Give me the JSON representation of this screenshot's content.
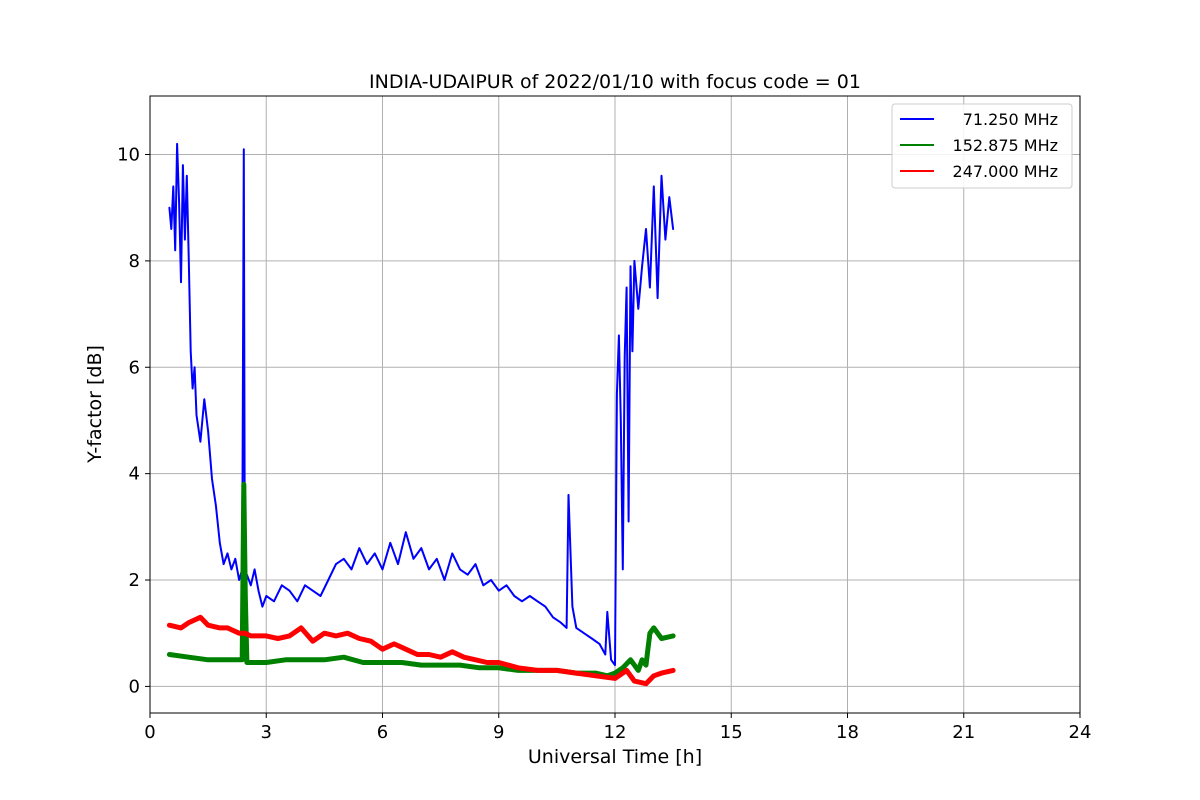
{
  "chart_data": {
    "type": "line",
    "title": "INDIA-UDAIPUR of 2022/01/10 with focus code = 01",
    "xlabel": "Universal Time [h]",
    "ylabel": "Y-factor [dB]",
    "xlim": [
      0,
      24
    ],
    "ylim": [
      -0.5,
      11.1
    ],
    "xticks": [
      0,
      3,
      6,
      9,
      12,
      15,
      18,
      21,
      24
    ],
    "yticks": [
      0,
      2,
      4,
      6,
      8,
      10
    ],
    "grid": true,
    "legend_position": "top-right",
    "series": [
      {
        "name": "71.250 MHz",
        "color": "#0000ff",
        "x": [
          0.5,
          0.55,
          0.6,
          0.65,
          0.7,
          0.75,
          0.8,
          0.85,
          0.9,
          0.95,
          1.0,
          1.05,
          1.1,
          1.15,
          1.2,
          1.3,
          1.4,
          1.5,
          1.6,
          1.7,
          1.8,
          1.9,
          2.0,
          2.1,
          2.2,
          2.3,
          2.38,
          2.42,
          2.45,
          2.5,
          2.6,
          2.7,
          2.8,
          2.9,
          3.0,
          3.2,
          3.4,
          3.6,
          3.8,
          4.0,
          4.2,
          4.4,
          4.6,
          4.8,
          5.0,
          5.2,
          5.4,
          5.6,
          5.8,
          6.0,
          6.2,
          6.4,
          6.6,
          6.8,
          7.0,
          7.2,
          7.4,
          7.6,
          7.8,
          8.0,
          8.2,
          8.4,
          8.6,
          8.8,
          9.0,
          9.2,
          9.4,
          9.6,
          9.8,
          10.0,
          10.2,
          10.4,
          10.6,
          10.75,
          10.8,
          10.9,
          11.0,
          11.2,
          11.4,
          11.6,
          11.75,
          11.8,
          11.9,
          12.0,
          12.05,
          12.1,
          12.15,
          12.2,
          12.25,
          12.3,
          12.35,
          12.4,
          12.45,
          12.5,
          12.6,
          12.7,
          12.8,
          12.9,
          13.0,
          13.1,
          13.2,
          13.3,
          13.4,
          13.5
        ],
        "y": [
          9.0,
          8.6,
          9.4,
          8.2,
          10.2,
          9.1,
          7.6,
          9.8,
          8.4,
          9.6,
          8.0,
          6.3,
          5.6,
          6.0,
          5.1,
          4.6,
          5.4,
          4.8,
          3.9,
          3.4,
          2.7,
          2.3,
          2.5,
          2.2,
          2.4,
          2.0,
          2.2,
          10.1,
          1.6,
          2.1,
          1.9,
          2.2,
          1.8,
          1.5,
          1.7,
          1.6,
          1.9,
          1.8,
          1.6,
          1.9,
          1.8,
          1.7,
          2.0,
          2.3,
          2.4,
          2.2,
          2.6,
          2.3,
          2.5,
          2.2,
          2.7,
          2.3,
          2.9,
          2.4,
          2.6,
          2.2,
          2.4,
          2.0,
          2.5,
          2.2,
          2.1,
          2.3,
          1.9,
          2.0,
          1.8,
          1.9,
          1.7,
          1.6,
          1.7,
          1.6,
          1.5,
          1.3,
          1.2,
          1.1,
          3.6,
          1.5,
          1.1,
          1.0,
          0.9,
          0.8,
          0.6,
          1.4,
          0.5,
          0.4,
          5.5,
          6.6,
          5.0,
          2.2,
          6.2,
          7.5,
          3.1,
          7.9,
          6.3,
          8.0,
          7.1,
          7.9,
          8.6,
          7.5,
          9.4,
          7.3,
          9.6,
          8.4,
          9.2,
          8.6
        ]
      },
      {
        "name": "152.875 MHz",
        "color": "#008000",
        "x": [
          0.5,
          1.0,
          1.5,
          2.0,
          2.38,
          2.42,
          2.46,
          2.5,
          3.0,
          3.5,
          4.0,
          4.5,
          5.0,
          5.5,
          6.0,
          6.5,
          7.0,
          7.5,
          8.0,
          8.5,
          9.0,
          9.5,
          10.0,
          10.5,
          11.0,
          11.5,
          11.8,
          12.0,
          12.2,
          12.4,
          12.6,
          12.7,
          12.8,
          12.85,
          12.9,
          13.0,
          13.2,
          13.5
        ],
        "y": [
          0.6,
          0.55,
          0.5,
          0.5,
          0.5,
          3.8,
          1.7,
          0.45,
          0.45,
          0.5,
          0.5,
          0.5,
          0.55,
          0.45,
          0.45,
          0.45,
          0.4,
          0.4,
          0.4,
          0.35,
          0.35,
          0.3,
          0.3,
          0.3,
          0.25,
          0.25,
          0.2,
          0.25,
          0.35,
          0.5,
          0.3,
          0.5,
          0.4,
          0.7,
          1.0,
          1.1,
          0.9,
          0.95
        ]
      },
      {
        "name": "247.000 MHz",
        "color": "#ff0000",
        "x": [
          0.5,
          0.8,
          1.0,
          1.3,
          1.5,
          1.8,
          2.0,
          2.3,
          2.45,
          2.6,
          3.0,
          3.3,
          3.6,
          3.9,
          4.2,
          4.5,
          4.8,
          5.1,
          5.4,
          5.7,
          6.0,
          6.3,
          6.6,
          6.9,
          7.2,
          7.5,
          7.8,
          8.1,
          8.4,
          8.7,
          9.0,
          9.5,
          10.0,
          10.5,
          11.0,
          11.5,
          12.0,
          12.3,
          12.5,
          12.8,
          13.0,
          13.2,
          13.5
        ],
        "y": [
          1.15,
          1.1,
          1.2,
          1.3,
          1.15,
          1.1,
          1.1,
          1.0,
          1.0,
          0.95,
          0.95,
          0.9,
          0.95,
          1.1,
          0.85,
          1.0,
          0.95,
          1.0,
          0.9,
          0.85,
          0.7,
          0.8,
          0.7,
          0.6,
          0.6,
          0.55,
          0.65,
          0.55,
          0.5,
          0.45,
          0.45,
          0.35,
          0.3,
          0.3,
          0.25,
          0.2,
          0.15,
          0.3,
          0.1,
          0.05,
          0.2,
          0.25,
          0.3
        ]
      }
    ]
  }
}
